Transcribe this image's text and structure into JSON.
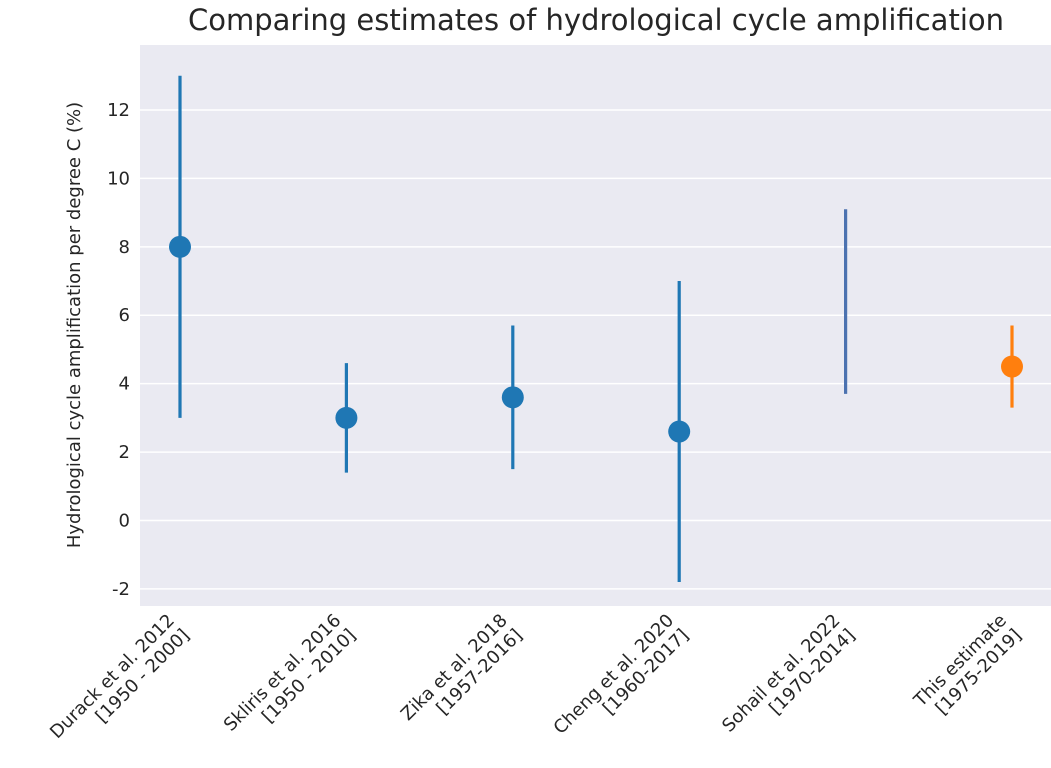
{
  "chart_data": {
    "type": "pointrange",
    "title": "Comparing estimates of hydrological cycle amplification",
    "ylabel": "Hydrological cycle amplification per degree C (%)",
    "categories": [
      [
        "Durack et al. 2012",
        "[1950 - 2000]"
      ],
      [
        "Skliris et al. 2016",
        "[1950 - 2010]"
      ],
      [
        "Zika et al. 2018",
        "[1957-2016]"
      ],
      [
        "Cheng et al. 2020",
        "[1960-2017]"
      ],
      [
        "Sohail et al. 2022",
        "[1970-2014]"
      ],
      [
        "This estimate",
        "[1975-2019]"
      ]
    ],
    "values": [
      8,
      3,
      3.6,
      2.6,
      null,
      4.5
    ],
    "lower": [
      3,
      1.4,
      1.5,
      -1.8,
      3.7,
      3.3
    ],
    "upper": [
      13,
      4.6,
      5.7,
      7.0,
      9.1,
      5.7
    ],
    "colors": [
      "#1f77b4",
      "#1f77b4",
      "#1f77b4",
      "#1f77b4",
      "#4c72b0",
      "#ff7f0e"
    ],
    "ylim": [
      -2.5,
      13.9
    ],
    "yticks": [
      -2,
      0,
      2,
      4,
      6,
      8,
      10,
      12
    ],
    "grid": true
  }
}
